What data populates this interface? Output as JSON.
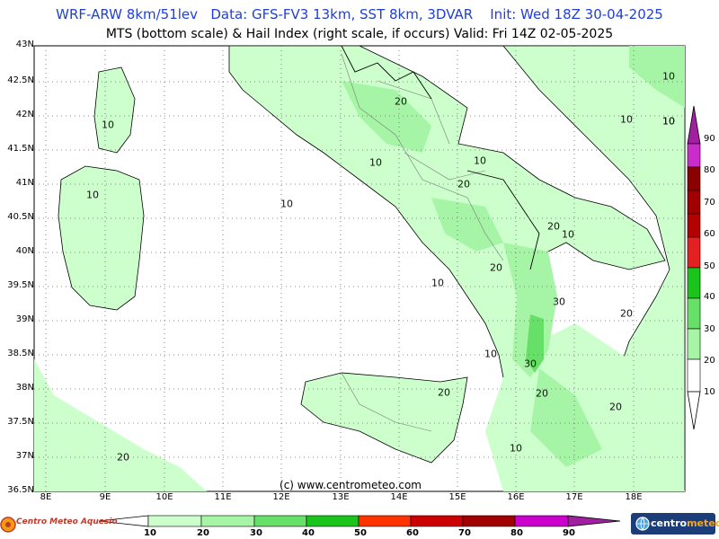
{
  "header": {
    "line1": "WRF-ARW 8km/51lev   Data: GFS-FV3 13km, SST 8km, 3DVAR    Init: Wed 18Z 30-04-2025",
    "line2": "MTS (bottom scale) & Hail Index (right scale, if occurs) Valid: Fri 14Z 02-05-2025"
  },
  "map": {
    "lat_labels": [
      "43N",
      "42.5N",
      "42N",
      "41.5N",
      "41N",
      "40.5N",
      "40N",
      "39.5N",
      "39N",
      "38.5N",
      "38N",
      "37.5N",
      "37N",
      "36.5N"
    ],
    "lon_labels": [
      "8E",
      "9E",
      "10E",
      "11E",
      "12E",
      "13E",
      "14E",
      "15E",
      "16E",
      "17E",
      "18E"
    ],
    "contour_labels": [
      "10",
      "10",
      "10",
      "20",
      "10",
      "20",
      "10",
      "20",
      "10",
      "20",
      "10",
      "20",
      "10",
      "20",
      "30",
      "20",
      "10",
      "20",
      "10",
      "20",
      "10",
      "10",
      "30",
      "10"
    ],
    "colors": {
      "level_10_20": "#ccffcc",
      "level_20_30": "#a6f5a6",
      "level_30_40": "#66e066",
      "sea": "#ffffff",
      "coast": "#000000",
      "border": "#888888"
    }
  },
  "copyright": "(c)  www.centrometeo.com",
  "hail_scale": {
    "labels": [
      "90",
      "80",
      "70",
      "60",
      "50",
      "40",
      "30",
      "20",
      "10"
    ],
    "colors": [
      "#b000b0",
      "#cc2bcc",
      "#8b0000",
      "#b30000",
      "#e52020",
      "#1bc41b",
      "#66e066",
      "#a6f5a6",
      "#ffffff"
    ]
  },
  "mts_scale": {
    "labels": [
      "10",
      "20",
      "30",
      "40",
      "50",
      "60",
      "70",
      "80",
      "90"
    ],
    "colors": [
      "#ccffcc",
      "#a6f5a6",
      "#66e066",
      "#1bc41b",
      "#ff3300",
      "#cc0000",
      "#a00000",
      "#cc00cc",
      "#a020a0"
    ]
  },
  "logos": {
    "left": "Centro Meteo Aquesio",
    "right_a": "centro",
    "right_b": "meteo"
  }
}
